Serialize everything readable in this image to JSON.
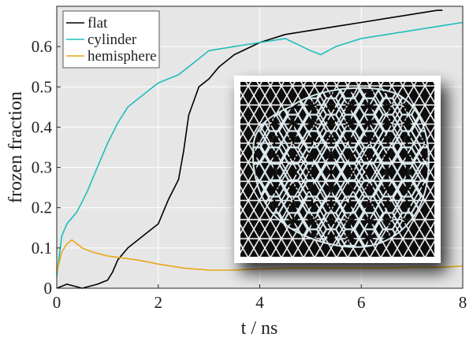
{
  "chart_data": {
    "type": "line",
    "xlabel": "t / ns",
    "ylabel": "frozen fraction",
    "xlim": [
      0,
      8
    ],
    "ylim": [
      0,
      0.7
    ],
    "x_ticks": [
      "0",
      "2",
      "4",
      "6",
      "8"
    ],
    "y_ticks": [
      "0",
      "0.1",
      "0.2",
      "0.3",
      "0.4",
      "0.5",
      "0.6"
    ],
    "x_tick_values": [
      0,
      2,
      4,
      6,
      8
    ],
    "y_tick_values": [
      0,
      0.1,
      0.2,
      0.3,
      0.4,
      0.5,
      0.6
    ],
    "grid": true,
    "background": "#e6e6e6",
    "legend_position": "top-left",
    "inset": "simulation snapshot: hexagonal ice-like network (white) over a dark triangular lattice",
    "series": [
      {
        "name": "flat",
        "color": "#000000",
        "x": [
          0,
          0.2,
          0.5,
          0.8,
          1.0,
          1.1,
          1.2,
          1.4,
          1.6,
          1.8,
          2.0,
          2.2,
          2.4,
          2.5,
          2.6,
          2.8,
          3.0,
          3.2,
          3.5,
          4.0,
          4.5,
          5.0,
          5.5,
          6.0,
          6.5,
          7.0,
          7.5,
          7.6
        ],
        "y": [
          0,
          0.01,
          0.0,
          0.01,
          0.02,
          0.04,
          0.07,
          0.1,
          0.12,
          0.14,
          0.16,
          0.22,
          0.27,
          0.34,
          0.43,
          0.5,
          0.52,
          0.55,
          0.58,
          0.61,
          0.63,
          0.64,
          0.65,
          0.66,
          0.67,
          0.68,
          0.69,
          0.69
        ]
      },
      {
        "name": "cylinder",
        "color": "#1fbdbd",
        "x": [
          0,
          0.1,
          0.2,
          0.4,
          0.6,
          0.8,
          1.0,
          1.2,
          1.4,
          1.6,
          1.8,
          2.0,
          2.2,
          2.4,
          2.6,
          2.8,
          3.0,
          3.5,
          4.0,
          4.5,
          5.0,
          5.2,
          5.5,
          6.0,
          6.5,
          7.0,
          7.5,
          8.0
        ],
        "y": [
          0.03,
          0.13,
          0.16,
          0.19,
          0.24,
          0.3,
          0.36,
          0.41,
          0.45,
          0.47,
          0.49,
          0.51,
          0.52,
          0.53,
          0.55,
          0.57,
          0.59,
          0.6,
          0.61,
          0.62,
          0.59,
          0.58,
          0.6,
          0.62,
          0.63,
          0.64,
          0.65,
          0.66
        ]
      },
      {
        "name": "hemisphere",
        "color": "#e6a817",
        "x": [
          0,
          0.1,
          0.2,
          0.3,
          0.4,
          0.5,
          0.7,
          1.0,
          1.3,
          1.6,
          2.0,
          2.5,
          3.0,
          3.5,
          4.0,
          4.5,
          5.0,
          5.5,
          6.0,
          6.5,
          7.0,
          7.5,
          8.0
        ],
        "y": [
          0.04,
          0.09,
          0.11,
          0.12,
          0.11,
          0.1,
          0.09,
          0.08,
          0.075,
          0.07,
          0.06,
          0.05,
          0.045,
          0.045,
          0.048,
          0.05,
          0.05,
          0.05,
          0.05,
          0.05,
          0.052,
          0.052,
          0.055
        ]
      }
    ]
  }
}
